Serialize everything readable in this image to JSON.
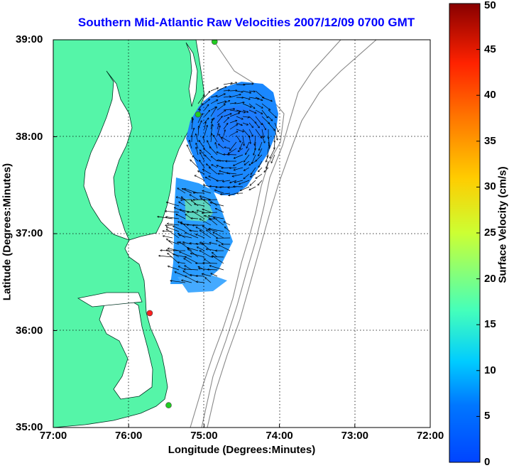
{
  "title": "Southern Mid-Atlantic Raw Velocities 2007/12/09 0700 GMT",
  "chart_data": {
    "type": "map",
    "xlabel": "Longitude (Degrees:Minutes)",
    "ylabel": "Latitude (Degrees:Minutes)",
    "x_ticks": [
      "77:00",
      "76:00",
      "75:00",
      "74:00",
      "73:00",
      "72:00"
    ],
    "y_ticks": [
      "39:00",
      "38:00",
      "37:00",
      "36:00",
      "35:00"
    ],
    "xlim": [
      -77,
      -72
    ],
    "ylim": [
      35,
      39
    ],
    "grid": true,
    "colorbar": {
      "label": "Surface Velocity (cm/s)",
      "min": 0,
      "max": 50,
      "ticks": [
        "0",
        "5",
        "10",
        "15",
        "20",
        "25",
        "30",
        "35",
        "40",
        "45",
        "50"
      ],
      "colormap": "jet"
    },
    "land_color": "#55f5a8",
    "stations": [
      {
        "lon": -74.86,
        "lat": 38.98,
        "color": "#22cc22"
      },
      {
        "lon": -75.08,
        "lat": 38.23,
        "color": "#22cc22"
      },
      {
        "lon": -75.72,
        "lat": 36.18,
        "color": "#ff2020"
      },
      {
        "lon": -75.47,
        "lat": 35.23,
        "color": "#22cc22"
      }
    ]
  }
}
